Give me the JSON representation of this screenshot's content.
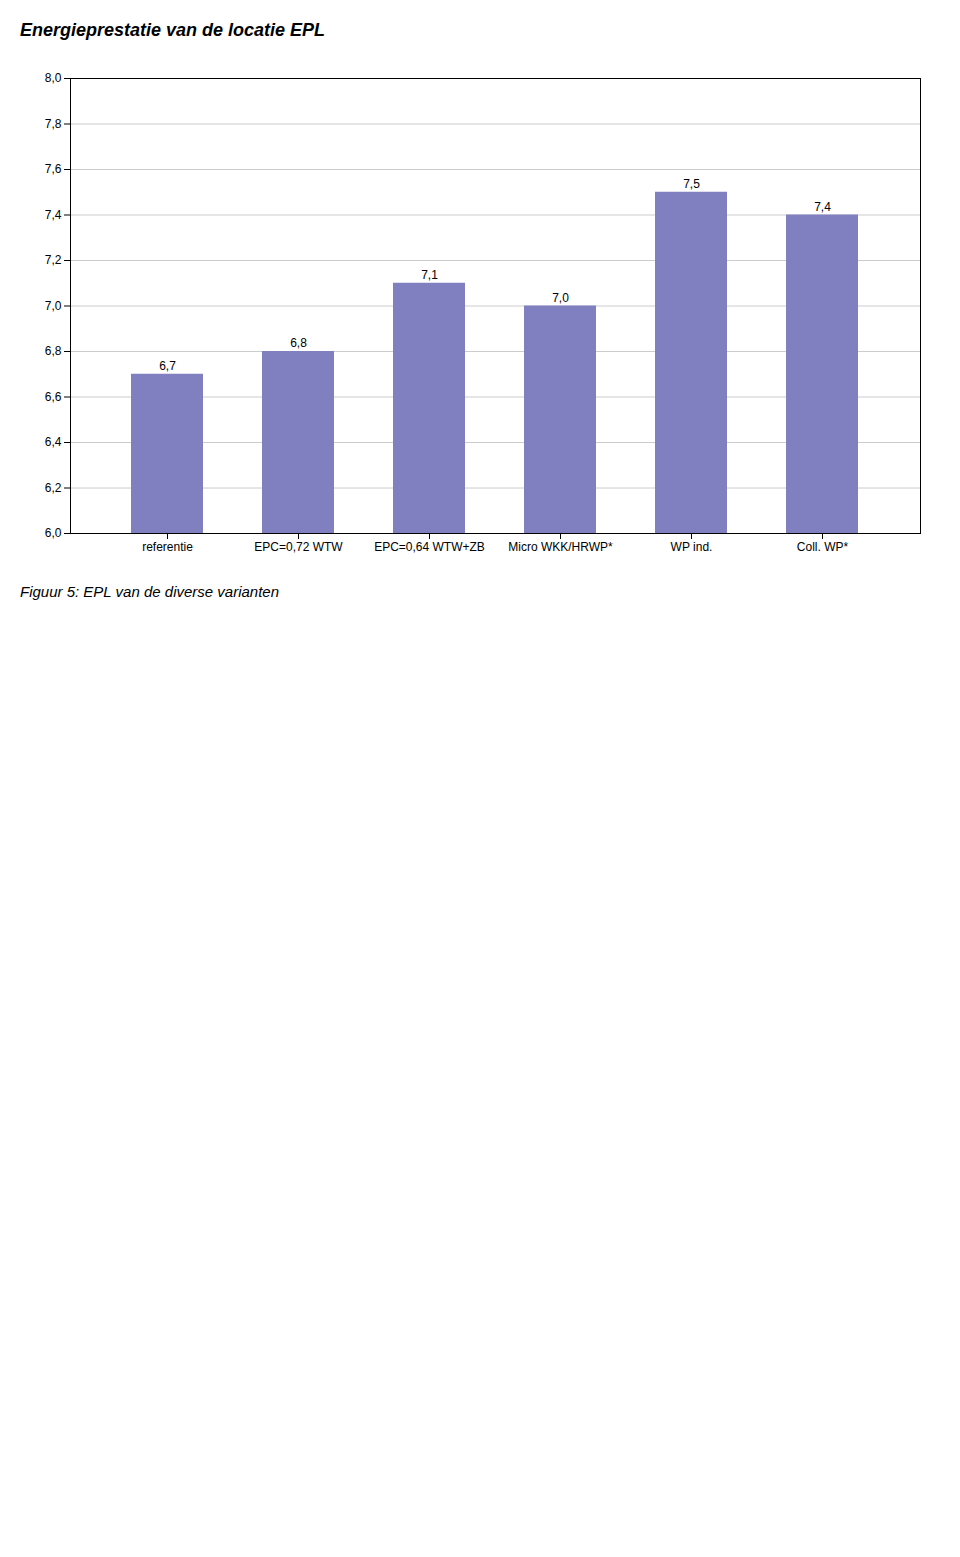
{
  "chart_data": {
    "type": "bar",
    "title": "Energieprestatie van de locatie EPL",
    "caption": "Figuur 5: EPL van de diverse varianten",
    "categories": [
      "referentie",
      "EPC=0,72 WTW",
      "EPC=0,64 WTW+ZB",
      "Micro WKK/HRWP*",
      "WP ind.",
      "Coll. WP*"
    ],
    "values": [
      6.7,
      6.8,
      7.1,
      7.0,
      7.5,
      7.4
    ],
    "value_labels": [
      "6,7",
      "6,8",
      "7,1",
      "7,0",
      "7,5",
      "7,4"
    ],
    "color": "#8080C0",
    "ylim": [
      6.0,
      8.0
    ],
    "yticks": [
      {
        "value": 6.0,
        "label": "6,0"
      },
      {
        "value": 6.2,
        "label": "6,2"
      },
      {
        "value": 6.4,
        "label": "6,4"
      },
      {
        "value": 6.6,
        "label": "6,6"
      },
      {
        "value": 6.8,
        "label": "6,8"
      },
      {
        "value": 7.0,
        "label": "7,0"
      },
      {
        "value": 7.2,
        "label": "7,2"
      },
      {
        "value": 7.4,
        "label": "7,4"
      },
      {
        "value": 7.6,
        "label": "7,6"
      },
      {
        "value": 7.8,
        "label": "7,8"
      },
      {
        "value": 8.0,
        "label": "8,0"
      }
    ],
    "grid": true,
    "data_labels": true
  }
}
